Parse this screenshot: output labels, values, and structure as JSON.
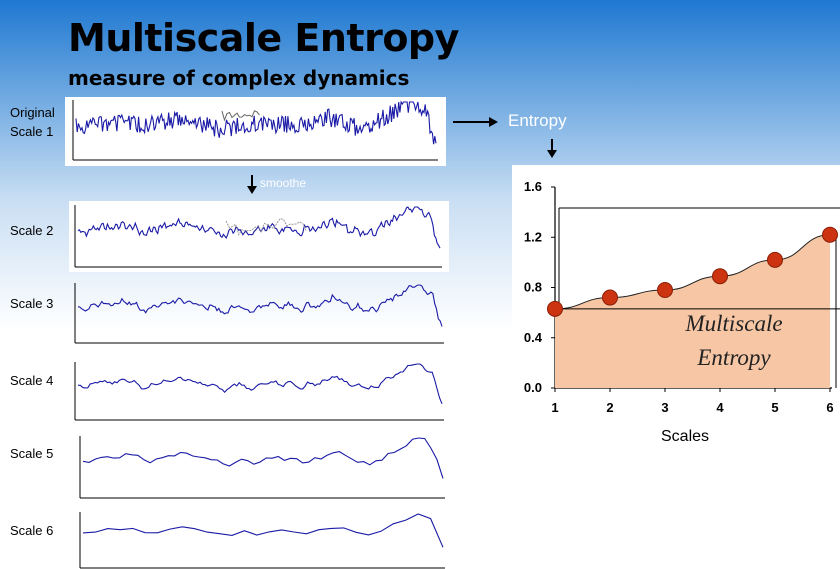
{
  "title": "Multiscale Entropy",
  "subtitle": "measure of complex dynamics",
  "labels": {
    "original_line1": "Original",
    "original_line2": "Scale 1",
    "scale2": "Scale 2",
    "scale3": "Scale 3",
    "scale4": "Scale 4",
    "scale5": "Scale 5",
    "scale6": "Scale 6",
    "entropy_arrow": "Entropy",
    "smoothe_arrow": "smoothe"
  },
  "colors": {
    "trace": "#1a1aa6",
    "zoom_inset": "#666666",
    "area_fill": "#f6c6a5",
    "marker": "#cc3311",
    "marker_edge": "#8a1f06",
    "arrow": "#000000"
  },
  "chart_data": {
    "type": "area",
    "x": [
      1,
      2,
      3,
      4,
      5,
      6
    ],
    "y": [
      0.63,
      0.72,
      0.78,
      0.89,
      1.02,
      1.22
    ],
    "annotation": "Multiscale Entropy",
    "xlabel": "Scales",
    "ylabel": "",
    "xlim": [
      1,
      6
    ],
    "ylim": [
      0.0,
      1.6
    ],
    "yticks": [
      "0.0",
      "0.4",
      "0.8",
      "1.2",
      "1.6"
    ],
    "xticks": [
      "1",
      "2",
      "3",
      "4",
      "5",
      "6"
    ],
    "grid": false,
    "markers": true
  }
}
